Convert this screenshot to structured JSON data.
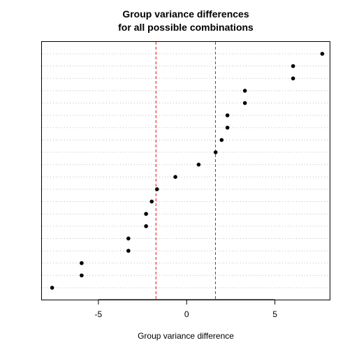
{
  "chart_data": {
    "type": "scatter",
    "title": "Group variance differences",
    "subtitle": "for all possible combinations",
    "xlabel": "Group variance difference",
    "ylabel": "",
    "xlim": [
      -8.2,
      8.1
    ],
    "xticks": [
      -5,
      0,
      5
    ],
    "grid": "horizontal-dotted",
    "reference_lines": [
      -1.74,
      1.63
    ],
    "reference_line_color": "#ff0000",
    "point_color": "#000000",
    "values": [
      -7.62,
      -5.95,
      -5.95,
      -3.3,
      -3.3,
      -2.3,
      -2.3,
      -1.98,
      -1.68,
      -0.64,
      0.68,
      1.64,
      1.98,
      2.31,
      2.31,
      3.3,
      3.3,
      6.03,
      6.03,
      7.68
    ]
  }
}
